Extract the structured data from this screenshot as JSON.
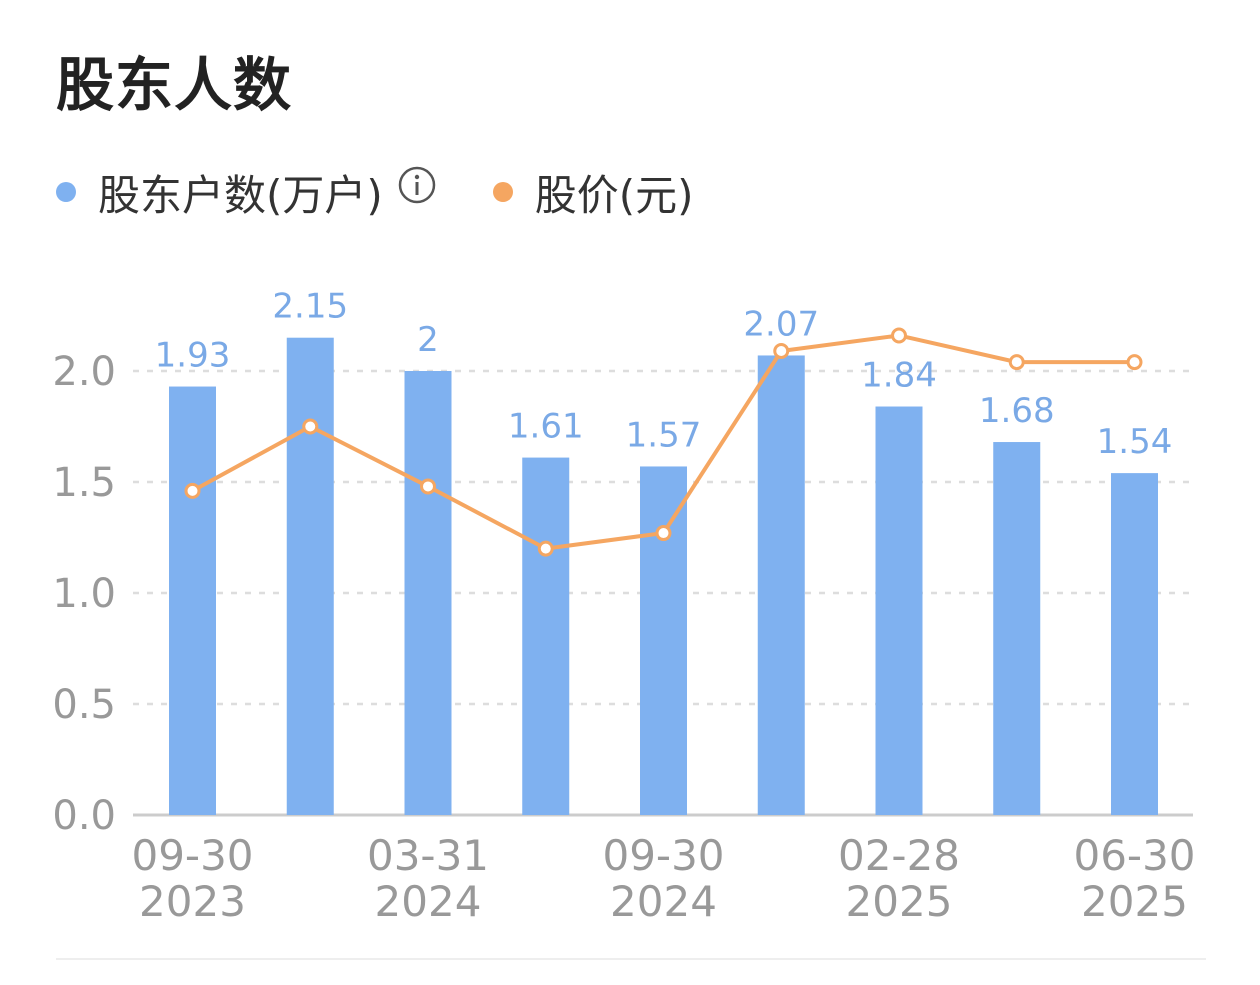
{
  "title": "股东人数",
  "legend": {
    "series1": "股东户数(万户)",
    "series2": "股价(元)",
    "info_icon": "info-icon"
  },
  "colors": {
    "bar": "#7fb1f0",
    "line": "#f5a661",
    "axis_text": "#999999",
    "grid": "#dddddd",
    "bar_label": "#7aa9e6"
  },
  "chart_data": {
    "type": "bar",
    "x": [
      "09-30\n2023",
      "",
      "03-31\n2024",
      "",
      "09-30\n2024",
      "",
      "02-28\n2025",
      "",
      "06-30\n2025"
    ],
    "series": [
      {
        "name": "股东户数(万户)",
        "type": "bar",
        "values": [
          1.93,
          2.15,
          2,
          1.61,
          1.57,
          2.07,
          1.84,
          1.68,
          1.54
        ],
        "labels": [
          "1.93",
          "2.15",
          "2",
          "1.61",
          "1.57",
          "2.07",
          "1.84",
          "1.68",
          "1.54"
        ]
      },
      {
        "name": "股价(元)",
        "type": "line",
        "values": [
          1.46,
          1.75,
          1.48,
          1.2,
          1.27,
          2.09,
          2.16,
          2.04,
          2.04
        ]
      }
    ],
    "ylim": [
      0,
      2.0
    ],
    "yticks": [
      "0.0",
      "0.5",
      "1.0",
      "1.5",
      "2.0"
    ],
    "grid": true,
    "legend": "top-left"
  }
}
